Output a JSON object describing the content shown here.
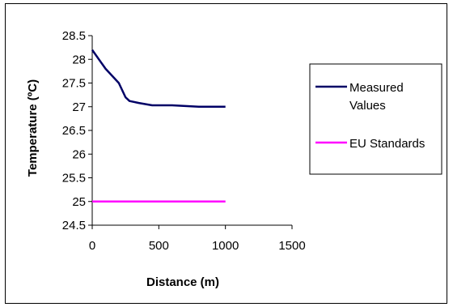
{
  "chart_data": {
    "type": "line",
    "xlabel": "Distance (m)",
    "ylabel": "Temperature (ºC)",
    "xlim": [
      0,
      1500
    ],
    "ylim": [
      24.5,
      28.5
    ],
    "xticks": [
      "0",
      "500",
      "1000",
      "1500"
    ],
    "yticks": [
      "24.5",
      "25",
      "25.5",
      "26",
      "26.5",
      "27",
      "27.5",
      "28",
      "28.5"
    ],
    "grid": false,
    "legend_position": "right",
    "series": [
      {
        "name": "Measured Values",
        "color": "#000066",
        "x": [
          0,
          100,
          200,
          250,
          280,
          350,
          450,
          600,
          800,
          1000
        ],
        "y": [
          28.2,
          27.8,
          27.5,
          27.2,
          27.12,
          27.08,
          27.03,
          27.03,
          27.0,
          27.0
        ]
      },
      {
        "name": "EU Standards",
        "color": "#ff00ff",
        "x": [
          0,
          1000
        ],
        "y": [
          25,
          25
        ]
      }
    ]
  }
}
